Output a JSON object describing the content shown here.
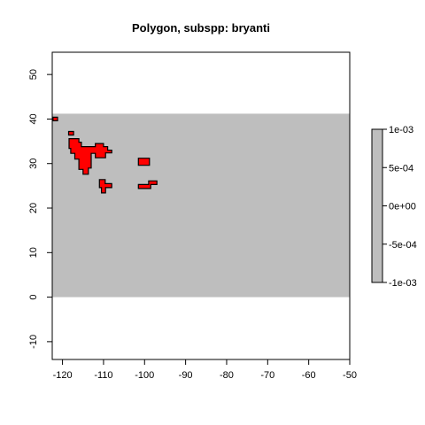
{
  "chart_data": {
    "type": "heatmap",
    "title": "Polygon, subspp: bryanti",
    "xlabel": "",
    "ylabel": "",
    "xlim": [
      -122.5,
      -50
    ],
    "ylim": [
      -14,
      55
    ],
    "xticks": [
      -120,
      -110,
      -100,
      -90,
      -80,
      -70,
      -60,
      -50
    ],
    "yticks": [
      -10,
      0,
      10,
      20,
      30,
      40,
      50
    ],
    "raster_extent": {
      "xmin": -122.5,
      "xmax": -50,
      "ymin": 0,
      "ymax": 41.2
    },
    "raster_value": 0,
    "raster_color": "#bebebe",
    "polygon_fill": "#ff0000",
    "polygon_border": "#000000",
    "polygons": [
      [
        [
          -122.3,
          40.4
        ],
        [
          -121.2,
          40.4
        ],
        [
          -121.2,
          39.6
        ],
        [
          -122.3,
          39.6
        ]
      ],
      [
        [
          -118.5,
          37.2
        ],
        [
          -117.3,
          37.2
        ],
        [
          -117.3,
          36.4
        ],
        [
          -118.5,
          36.4
        ]
      ],
      [
        [
          -118.4,
          35.6
        ],
        [
          -116.0,
          35.6
        ],
        [
          -116.0,
          34.8
        ],
        [
          -115.4,
          34.8
        ],
        [
          -115.4,
          33.8
        ],
        [
          -112.0,
          33.8
        ],
        [
          -112.0,
          34.5
        ],
        [
          -110.0,
          34.5
        ],
        [
          -110.0,
          33.8
        ],
        [
          -109.0,
          33.8
        ],
        [
          -109.0,
          33.0
        ],
        [
          -108.0,
          33.0
        ],
        [
          -108.0,
          32.4
        ],
        [
          -109.5,
          32.4
        ],
        [
          -109.5,
          31.3
        ],
        [
          -112.0,
          31.3
        ],
        [
          -112.0,
          32.3
        ],
        [
          -113.0,
          32.3
        ],
        [
          -113.0,
          29.0
        ],
        [
          -113.7,
          29.0
        ],
        [
          -113.7,
          27.6
        ],
        [
          -115.0,
          27.6
        ],
        [
          -115.0,
          28.7
        ],
        [
          -116.0,
          28.7
        ],
        [
          -116.0,
          31.0
        ],
        [
          -117.0,
          31.0
        ],
        [
          -117.0,
          32.3
        ],
        [
          -118.0,
          32.3
        ],
        [
          -118.0,
          33.4
        ],
        [
          -118.4,
          33.4
        ]
      ],
      [
        [
          -111.0,
          26.4
        ],
        [
          -109.6,
          26.4
        ],
        [
          -109.6,
          25.5
        ],
        [
          -108.0,
          25.5
        ],
        [
          -108.0,
          24.6
        ],
        [
          -109.5,
          24.6
        ],
        [
          -109.5,
          23.4
        ],
        [
          -110.5,
          23.4
        ],
        [
          -110.5,
          24.6
        ],
        [
          -111.0,
          24.6
        ]
      ],
      [
        [
          -101.5,
          31.2
        ],
        [
          -98.8,
          31.2
        ],
        [
          -98.8,
          29.6
        ],
        [
          -101.5,
          29.6
        ]
      ],
      [
        [
          -101.5,
          25.3
        ],
        [
          -99.0,
          25.3
        ],
        [
          -99.0,
          26.1
        ],
        [
          -97.0,
          26.1
        ],
        [
          -97.0,
          25.3
        ],
        [
          -98.5,
          25.3
        ],
        [
          -98.5,
          24.4
        ],
        [
          -101.5,
          24.4
        ]
      ]
    ],
    "legend": {
      "position": "right",
      "min": -0.001,
      "max": 0.001,
      "ticks": [
        "1e-03",
        "5e-04",
        "0e+00",
        "-5e-04",
        "-1e-03"
      ],
      "color": "#bebebe"
    }
  }
}
